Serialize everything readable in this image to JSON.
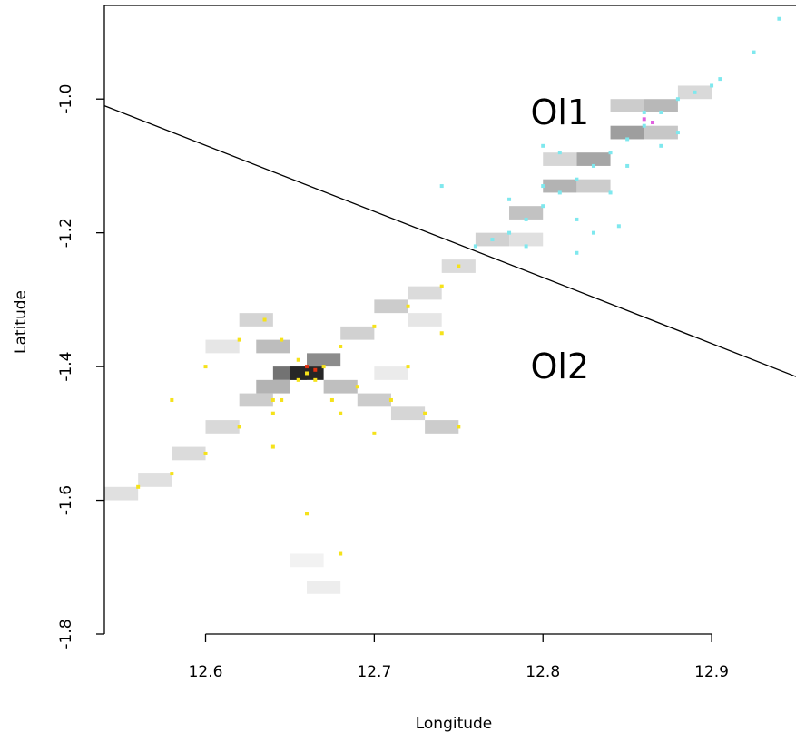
{
  "chart_data": {
    "type": "scatter",
    "xlabel": "Longitude",
    "ylabel": "Latitude",
    "xlim": [
      12.54,
      12.95
    ],
    "ylim": [
      -1.8,
      -0.86
    ],
    "xticks": [
      12.6,
      12.7,
      12.8,
      12.9
    ],
    "yticks": [
      -1.8,
      -1.6,
      -1.4,
      -1.2,
      -1.0
    ],
    "grid": false,
    "annotations": [
      {
        "text": "Ol1",
        "x": 12.81,
        "y": -1.02
      },
      {
        "text": "Ol2",
        "x": 12.81,
        "y": -1.4
      }
    ],
    "boundary_line": {
      "x": [
        12.54,
        12.95
      ],
      "y": [
        -1.01,
        -1.415
      ],
      "color": "#000000"
    },
    "series": [
      {
        "color": "#7fe8ee",
        "points": [
          [
            12.76,
            -1.22
          ],
          [
            12.77,
            -1.21
          ],
          [
            12.78,
            -1.2
          ],
          [
            12.79,
            -1.18
          ],
          [
            12.8,
            -1.16
          ],
          [
            12.81,
            -1.14
          ],
          [
            12.82,
            -1.12
          ],
          [
            12.83,
            -1.1
          ],
          [
            12.84,
            -1.08
          ],
          [
            12.85,
            -1.06
          ],
          [
            12.86,
            -1.04
          ],
          [
            12.87,
            -1.02
          ],
          [
            12.88,
            -1.0
          ],
          [
            12.89,
            -0.99
          ],
          [
            12.9,
            -0.98
          ],
          [
            12.905,
            -0.97
          ],
          [
            12.78,
            -1.15
          ],
          [
            12.8,
            -1.13
          ],
          [
            12.82,
            -1.18
          ],
          [
            12.84,
            -1.14
          ],
          [
            12.85,
            -1.1
          ],
          [
            12.79,
            -1.22
          ],
          [
            12.83,
            -1.2
          ],
          [
            12.87,
            -1.07
          ],
          [
            12.88,
            -1.05
          ],
          [
            12.81,
            -1.08
          ],
          [
            12.86,
            -1.02
          ],
          [
            12.74,
            -1.13
          ],
          [
            12.8,
            -1.07
          ],
          [
            12.845,
            -1.19
          ],
          [
            12.82,
            -1.23
          ],
          [
            12.94,
            -0.88
          ],
          [
            12.925,
            -0.93
          ]
        ]
      },
      {
        "color": "#f5e21a",
        "points": [
          [
            12.56,
            -1.58
          ],
          [
            12.58,
            -1.56
          ],
          [
            12.6,
            -1.53
          ],
          [
            12.62,
            -1.49
          ],
          [
            12.64,
            -1.45
          ],
          [
            12.66,
            -1.41
          ],
          [
            12.68,
            -1.37
          ],
          [
            12.7,
            -1.34
          ],
          [
            12.72,
            -1.31
          ],
          [
            12.74,
            -1.28
          ],
          [
            12.75,
            -1.25
          ],
          [
            12.635,
            -1.33
          ],
          [
            12.645,
            -1.36
          ],
          [
            12.655,
            -1.39
          ],
          [
            12.665,
            -1.42
          ],
          [
            12.675,
            -1.45
          ],
          [
            12.68,
            -1.47
          ],
          [
            12.64,
            -1.47
          ],
          [
            12.645,
            -1.45
          ],
          [
            12.655,
            -1.42
          ],
          [
            12.67,
            -1.4
          ],
          [
            12.69,
            -1.43
          ],
          [
            12.71,
            -1.45
          ],
          [
            12.73,
            -1.47
          ],
          [
            12.75,
            -1.49
          ],
          [
            12.6,
            -1.4
          ],
          [
            12.62,
            -1.36
          ],
          [
            12.7,
            -1.5
          ],
          [
            12.64,
            -1.52
          ],
          [
            12.66,
            -1.62
          ],
          [
            12.68,
            -1.68
          ],
          [
            12.72,
            -1.4
          ],
          [
            12.74,
            -1.35
          ],
          [
            12.58,
            -1.45
          ]
        ]
      },
      {
        "color": "#e03010",
        "points": [
          [
            12.66,
            -1.4
          ],
          [
            12.665,
            -1.405
          ]
        ]
      },
      {
        "color": "#e060e0",
        "points": [
          [
            12.86,
            -1.03
          ],
          [
            12.865,
            -1.035
          ]
        ]
      }
    ],
    "density_cells": [
      {
        "x": 12.87,
        "y": -1.01,
        "shade": 0.72
      },
      {
        "x": 12.85,
        "y": -1.05,
        "shade": 0.62
      },
      {
        "x": 12.83,
        "y": -1.09,
        "shade": 0.65
      },
      {
        "x": 12.81,
        "y": -1.13,
        "shade": 0.7
      },
      {
        "x": 12.79,
        "y": -1.17,
        "shade": 0.76
      },
      {
        "x": 12.77,
        "y": -1.21,
        "shade": 0.82
      },
      {
        "x": 12.85,
        "y": -1.01,
        "shade": 0.8
      },
      {
        "x": 12.83,
        "y": -1.13,
        "shade": 0.8
      },
      {
        "x": 12.81,
        "y": -1.09,
        "shade": 0.84
      },
      {
        "x": 12.87,
        "y": -1.05,
        "shade": 0.78
      },
      {
        "x": 12.89,
        "y": -0.99,
        "shade": 0.85
      },
      {
        "x": 12.79,
        "y": -1.21,
        "shade": 0.88
      },
      {
        "x": 12.75,
        "y": -1.25,
        "shade": 0.86
      },
      {
        "x": 12.73,
        "y": -1.29,
        "shade": 0.86
      },
      {
        "x": 12.71,
        "y": -1.31,
        "shade": 0.8
      },
      {
        "x": 12.69,
        "y": -1.35,
        "shade": 0.82
      },
      {
        "x": 12.67,
        "y": -1.39,
        "shade": 0.55
      },
      {
        "x": 12.65,
        "y": -1.41,
        "shade": 0.45
      },
      {
        "x": 12.66,
        "y": -1.41,
        "shade": 0.15
      },
      {
        "x": 12.64,
        "y": -1.37,
        "shade": 0.74
      },
      {
        "x": 12.64,
        "y": -1.43,
        "shade": 0.7
      },
      {
        "x": 12.68,
        "y": -1.43,
        "shade": 0.75
      },
      {
        "x": 12.7,
        "y": -1.45,
        "shade": 0.8
      },
      {
        "x": 12.72,
        "y": -1.47,
        "shade": 0.84
      },
      {
        "x": 12.74,
        "y": -1.49,
        "shade": 0.8
      },
      {
        "x": 12.63,
        "y": -1.45,
        "shade": 0.8
      },
      {
        "x": 12.61,
        "y": -1.49,
        "shade": 0.85
      },
      {
        "x": 12.59,
        "y": -1.53,
        "shade": 0.86
      },
      {
        "x": 12.57,
        "y": -1.57,
        "shade": 0.88
      },
      {
        "x": 12.63,
        "y": -1.33,
        "shade": 0.83
      },
      {
        "x": 12.61,
        "y": -1.37,
        "shade": 0.9
      },
      {
        "x": 12.67,
        "y": -1.73,
        "shade": 0.93
      },
      {
        "x": 12.66,
        "y": -1.69,
        "shade": 0.95
      },
      {
        "x": 12.73,
        "y": -1.33,
        "shade": 0.9
      },
      {
        "x": 12.71,
        "y": -1.41,
        "shade": 0.92
      },
      {
        "x": 12.55,
        "y": -1.59,
        "shade": 0.88
      }
    ]
  }
}
